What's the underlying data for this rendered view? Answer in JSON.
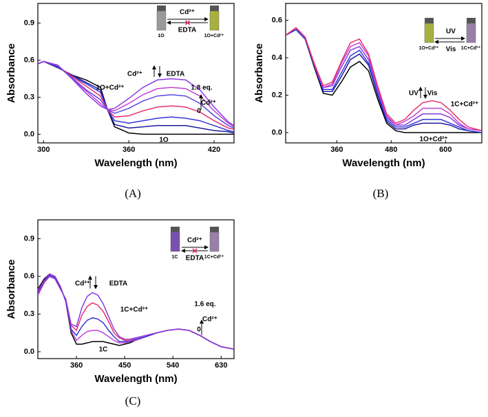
{
  "chart_data": [
    {
      "type": "line",
      "panel_label": "(A)",
      "xlabel": "Wavelength (nm)",
      "ylabel": "Absorbance",
      "xlim": [
        296,
        434
      ],
      "ylim": [
        -0.07,
        1.06
      ],
      "xticks": [
        300,
        360,
        420
      ],
      "yticks": [
        {
          "value": 0,
          "label": "0.0"
        },
        0.3,
        0.6,
        0.9
      ],
      "x": [
        296,
        300,
        310,
        320,
        330,
        340,
        345,
        350,
        360,
        370,
        380,
        390,
        400,
        410,
        420,
        430,
        434
      ],
      "series": [
        {
          "color": "#000000",
          "values": [
            0.57,
            0.59,
            0.54,
            0.48,
            0.44,
            0.38,
            0.2,
            0.06,
            0.01,
            0,
            0,
            0,
            0,
            0,
            0,
            0,
            0
          ]
        },
        {
          "color": "#1c1c9c",
          "values": [
            0.57,
            0.59,
            0.54,
            0.48,
            0.42,
            0.36,
            0.2,
            0.08,
            0.05,
            0.06,
            0.07,
            0.07,
            0.07,
            0.05,
            0.03,
            0.02,
            0.01
          ]
        },
        {
          "color": "#3434d8",
          "values": [
            0.57,
            0.59,
            0.55,
            0.47,
            0.41,
            0.34,
            0.2,
            0.11,
            0.09,
            0.11,
            0.13,
            0.14,
            0.13,
            0.11,
            0.07,
            0.03,
            0.02
          ]
        },
        {
          "color": "#e8306a",
          "values": [
            0.57,
            0.59,
            0.55,
            0.47,
            0.39,
            0.31,
            0.2,
            0.14,
            0.15,
            0.19,
            0.22,
            0.23,
            0.22,
            0.18,
            0.11,
            0.05,
            0.04
          ]
        },
        {
          "color": "#5a48e0",
          "values": [
            0.57,
            0.59,
            0.55,
            0.46,
            0.36,
            0.28,
            0.2,
            0.17,
            0.21,
            0.27,
            0.31,
            0.32,
            0.31,
            0.25,
            0.15,
            0.07,
            0.05
          ]
        },
        {
          "color": "#c040d8",
          "values": [
            0.57,
            0.59,
            0.56,
            0.45,
            0.35,
            0.25,
            0.2,
            0.19,
            0.25,
            0.32,
            0.37,
            0.38,
            0.37,
            0.31,
            0.19,
            0.09,
            0.06
          ]
        },
        {
          "color": "#8a3ae0",
          "values": [
            0.57,
            0.59,
            0.56,
            0.45,
            0.33,
            0.23,
            0.2,
            0.21,
            0.29,
            0.38,
            0.44,
            0.45,
            0.44,
            0.36,
            0.22,
            0.1,
            0.07
          ]
        }
      ],
      "annotations": [
        "Cd²⁺",
        "EDTA",
        "1O+Cd²⁺",
        "1.8 eq.",
        "0",
        "Cd²⁺",
        "1O"
      ],
      "inset": {
        "left_label": "1O",
        "right_label": "1O+Cd²⁺",
        "top_label": "Cd²⁺",
        "bottom_label": "EDTA"
      }
    },
    {
      "type": "line",
      "panel_label": "(B)",
      "xlabel": "Wavelength (nm)",
      "ylabel": "Absorbance",
      "xlim": [
        247,
        680
      ],
      "ylim": [
        -0.055,
        0.69
      ],
      "xticks": [
        360,
        480,
        600
      ],
      "yticks": [
        {
          "value": 0,
          "label": "0.0"
        },
        0.2,
        0.4,
        0.6
      ],
      "x": [
        247,
        270,
        290,
        310,
        330,
        350,
        370,
        390,
        410,
        430,
        450,
        470,
        490,
        510,
        530,
        550,
        570,
        590,
        610,
        630,
        650,
        680
      ],
      "series": [
        {
          "color": "#000000",
          "values": [
            0.52,
            0.55,
            0.5,
            0.35,
            0.21,
            0.2,
            0.27,
            0.35,
            0.38,
            0.33,
            0.18,
            0.05,
            0.01,
            0,
            0,
            0,
            0,
            0,
            0,
            0,
            0,
            0
          ]
        },
        {
          "color": "#1c1c9c",
          "values": [
            0.52,
            0.55,
            0.5,
            0.36,
            0.22,
            0.22,
            0.3,
            0.39,
            0.42,
            0.36,
            0.2,
            0.06,
            0.02,
            0.02,
            0.04,
            0.05,
            0.05,
            0.05,
            0.04,
            0.02,
            0.01,
            0
          ]
        },
        {
          "color": "#3434d8",
          "values": [
            0.52,
            0.55,
            0.5,
            0.36,
            0.23,
            0.23,
            0.32,
            0.41,
            0.44,
            0.37,
            0.21,
            0.07,
            0.03,
            0.03,
            0.05,
            0.07,
            0.07,
            0.07,
            0.05,
            0.03,
            0.01,
            0
          ]
        },
        {
          "color": "#8a3ae0",
          "values": [
            0.52,
            0.56,
            0.51,
            0.36,
            0.24,
            0.25,
            0.35,
            0.44,
            0.46,
            0.39,
            0.23,
            0.08,
            0.04,
            0.04,
            0.07,
            0.1,
            0.1,
            0.1,
            0.08,
            0.04,
            0.02,
            0.01
          ]
        },
        {
          "color": "#c040d8",
          "values": [
            0.52,
            0.56,
            0.51,
            0.37,
            0.24,
            0.26,
            0.37,
            0.46,
            0.48,
            0.41,
            0.24,
            0.09,
            0.04,
            0.06,
            0.09,
            0.13,
            0.13,
            0.13,
            0.1,
            0.05,
            0.02,
            0.01
          ]
        },
        {
          "color": "#e8306a",
          "values": [
            0.52,
            0.56,
            0.51,
            0.37,
            0.25,
            0.27,
            0.38,
            0.48,
            0.5,
            0.42,
            0.25,
            0.1,
            0.05,
            0.07,
            0.12,
            0.16,
            0.17,
            0.16,
            0.12,
            0.07,
            0.03,
            0.01
          ]
        }
      ],
      "annotations": [
        "UV",
        "Vis",
        "1C+Cd²⁺",
        "1O+Cd²⁺"
      ],
      "inset": {
        "left_label": "1O+Cd²⁺",
        "right_label": "1C+Cd²⁺",
        "top_label": "UV",
        "bottom_label": "Vis"
      }
    },
    {
      "type": "line",
      "panel_label": "(C)",
      "xlabel": "Wavelength (nm)",
      "ylabel": "Absorbance",
      "xlim": [
        288,
        654
      ],
      "ylim": [
        -0.055,
        1.05
      ],
      "xticks": [
        360,
        450,
        540,
        630
      ],
      "yticks": [
        {
          "value": 0,
          "label": "0.0"
        },
        0.3,
        0.6,
        0.9
      ],
      "x": [
        288,
        300,
        310,
        320,
        330,
        340,
        350,
        360,
        370,
        380,
        390,
        400,
        410,
        420,
        430,
        440,
        450,
        460,
        470,
        490,
        510,
        530,
        550,
        570,
        590,
        610,
        630,
        654
      ],
      "series": [
        {
          "color": "#000000",
          "values": [
            0.5,
            0.58,
            0.62,
            0.6,
            0.52,
            0.4,
            0.15,
            0.06,
            0.06,
            0.07,
            0.08,
            0.08,
            0.08,
            0.07,
            0.06,
            0.05,
            0.06,
            0.07,
            0.09,
            0.12,
            0.15,
            0.17,
            0.18,
            0.17,
            0.13,
            0.08,
            0.04,
            0.02
          ]
        },
        {
          "color": "#c040d8",
          "values": [
            0.49,
            0.57,
            0.62,
            0.6,
            0.52,
            0.4,
            0.17,
            0.09,
            0.13,
            0.16,
            0.17,
            0.17,
            0.15,
            0.12,
            0.09,
            0.07,
            0.07,
            0.08,
            0.09,
            0.12,
            0.15,
            0.17,
            0.18,
            0.17,
            0.13,
            0.08,
            0.04,
            0.02
          ]
        },
        {
          "color": "#3434d8",
          "values": [
            0.48,
            0.57,
            0.61,
            0.59,
            0.51,
            0.41,
            0.18,
            0.13,
            0.2,
            0.25,
            0.27,
            0.26,
            0.23,
            0.17,
            0.12,
            0.08,
            0.08,
            0.08,
            0.1,
            0.12,
            0.15,
            0.17,
            0.18,
            0.17,
            0.13,
            0.08,
            0.04,
            0.02
          ]
        },
        {
          "color": "#e8306a",
          "values": [
            0.46,
            0.56,
            0.6,
            0.58,
            0.5,
            0.42,
            0.21,
            0.17,
            0.29,
            0.36,
            0.39,
            0.37,
            0.32,
            0.24,
            0.15,
            0.11,
            0.09,
            0.09,
            0.11,
            0.13,
            0.15,
            0.17,
            0.18,
            0.17,
            0.13,
            0.08,
            0.04,
            0.02
          ]
        },
        {
          "color": "#8a3ae0",
          "values": [
            0.45,
            0.55,
            0.6,
            0.58,
            0.5,
            0.42,
            0.22,
            0.2,
            0.35,
            0.44,
            0.47,
            0.45,
            0.38,
            0.28,
            0.18,
            0.12,
            0.1,
            0.1,
            0.11,
            0.13,
            0.15,
            0.17,
            0.18,
            0.17,
            0.13,
            0.08,
            0.04,
            0.02
          ]
        }
      ],
      "annotations": [
        "Cd²⁺",
        "EDTA",
        "1C+Cd²⁺",
        "1.6 eq.",
        "0",
        "Cd²⁺",
        "1C"
      ],
      "inset": {
        "left_label": "1C",
        "right_label": "1C+Cd²⁺",
        "top_label": "Cd²⁺",
        "bottom_label": "EDTA"
      }
    }
  ]
}
